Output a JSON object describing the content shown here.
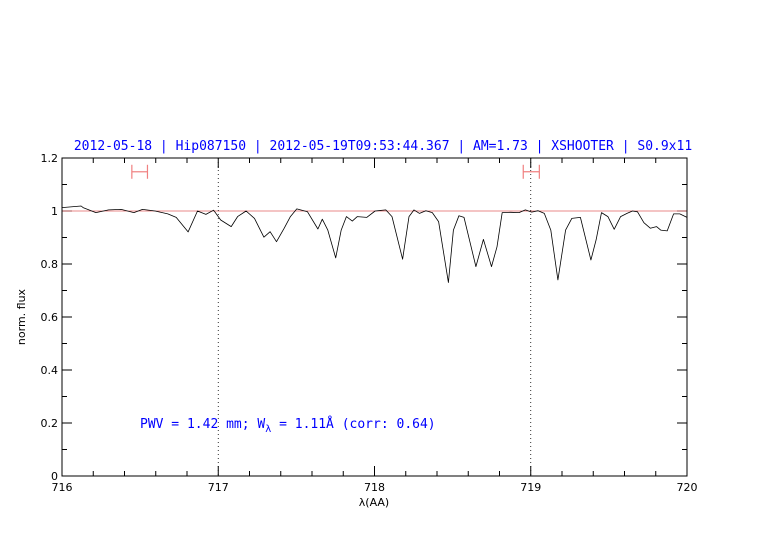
{
  "chart_data": {
    "type": "line",
    "title": "2012-05-18 | Hip087150 | 2012-05-19T09:53:44.367 | AM=1.73 | XSHOOTER | S0.9x11",
    "xlabel": "λ(AA)",
    "ylabel": "norm. flux",
    "xlim": [
      716,
      720
    ],
    "ylim": [
      0,
      1.2
    ],
    "xticks": [
      "716",
      "717",
      "718",
      "719",
      "720"
    ],
    "yticks": [
      "0",
      "0.2",
      "0.4",
      "0.6",
      "0.8",
      "1",
      "1.2"
    ],
    "grid": false,
    "annotation": {
      "prefix": "PWV = 1.42 mm; W",
      "subscript": "λ",
      "suffix": " = 1.11Å (corr: 0.64)"
    },
    "reference_line": {
      "y": 1.0,
      "color": "#e06060"
    },
    "dotted_vlines": [
      717,
      719
    ],
    "intervals": [
      {
        "x": [
          716.447,
          716.547
        ],
        "y": 1.148,
        "color": "#f08080"
      },
      {
        "x": [
          718.952,
          719.055
        ],
        "y": 1.148,
        "color": "#f08080"
      }
    ],
    "series": [
      {
        "color": "#000000",
        "x": [
          716.0,
          716.122,
          716.135,
          716.217,
          716.298,
          716.379,
          716.46,
          716.515,
          716.596,
          716.677,
          716.731,
          716.807,
          716.867,
          716.921,
          716.97,
          717.016,
          717.083,
          717.124,
          717.178,
          717.232,
          717.292,
          717.332,
          717.373,
          717.422,
          717.462,
          717.503,
          717.571,
          717.638,
          717.666,
          717.701,
          717.752,
          717.787,
          717.82,
          717.858,
          717.89,
          717.95,
          718.004,
          718.072,
          718.112,
          718.18,
          718.221,
          718.253,
          718.288,
          718.329,
          718.37,
          718.41,
          718.473,
          718.505,
          718.54,
          718.573,
          718.649,
          718.697,
          718.749,
          718.784,
          718.817,
          718.871,
          718.925,
          718.966,
          719.006,
          719.047,
          719.087,
          719.128,
          719.174,
          719.223,
          719.263,
          719.318,
          719.385,
          719.418,
          719.453,
          719.494,
          719.534,
          719.575,
          719.616,
          719.651,
          719.683,
          719.724,
          719.765,
          719.805,
          719.832,
          719.873,
          719.914,
          719.954,
          720.0
        ],
        "y": [
          1.013,
          1.019,
          1.013,
          0.994,
          1.004,
          1.006,
          0.994,
          1.006,
          1.0,
          0.989,
          0.976,
          0.921,
          1.0,
          0.987,
          1.003,
          0.966,
          0.941,
          0.979,
          1.0,
          0.972,
          0.901,
          0.922,
          0.884,
          0.935,
          0.979,
          1.008,
          0.997,
          0.932,
          0.969,
          0.928,
          0.823,
          0.928,
          0.979,
          0.962,
          0.979,
          0.976,
          1.0,
          1.004,
          0.979,
          0.818,
          0.979,
          1.004,
          0.991,
          1.001,
          0.994,
          0.96,
          0.73,
          0.928,
          0.982,
          0.976,
          0.79,
          0.893,
          0.79,
          0.865,
          0.994,
          0.995,
          0.994,
          1.004,
          0.996,
          1.001,
          0.991,
          0.928,
          0.74,
          0.928,
          0.972,
          0.976,
          0.815,
          0.891,
          0.994,
          0.979,
          0.931,
          0.979,
          0.991,
          1.0,
          0.997,
          0.956,
          0.935,
          0.941,
          0.928,
          0.925,
          0.989,
          0.989,
          0.976
        ]
      }
    ]
  }
}
